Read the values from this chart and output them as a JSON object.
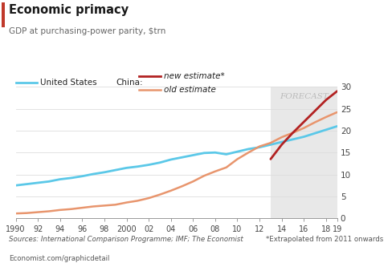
{
  "title": "Economic primacy",
  "subtitle": "GDP at purchasing-power parity, $trn",
  "source_left": "Sources: International Comparison Programme; IMF; The Economist",
  "source_right": "*Extrapolated from 2011 onwards",
  "footer": "Economist.com/graphicdetail",
  "forecast_start": 2013,
  "forecast_end": 2019,
  "ylim": [
    0,
    30
  ],
  "yticks": [
    0,
    5,
    10,
    15,
    20,
    25,
    30
  ],
  "xtick_labels": [
    "1990",
    "92",
    "94",
    "96",
    "98",
    "2000",
    "02",
    "04",
    "06",
    "08",
    "10",
    "12",
    "14",
    "16",
    "18",
    "19"
  ],
  "xtick_values": [
    1990,
    1992,
    1994,
    1996,
    1998,
    2000,
    2002,
    2004,
    2006,
    2008,
    2010,
    2012,
    2014,
    2016,
    2018,
    2019
  ],
  "us_color": "#5bc8e8",
  "china_new_color": "#b22222",
  "china_old_color": "#e8956d",
  "title_color": "#1a1a1a",
  "subtitle_color": "#666666",
  "forecast_bg": "#e8e8e8",
  "forecast_label_color": "#bbbbbb",
  "us_data": {
    "years": [
      1990,
      1991,
      1992,
      1993,
      1994,
      1995,
      1996,
      1997,
      1998,
      1999,
      2000,
      2001,
      2002,
      2003,
      2004,
      2005,
      2006,
      2007,
      2008,
      2009,
      2010,
      2011,
      2012,
      2013,
      2014,
      2015,
      2016,
      2017,
      2018,
      2019
    ],
    "values": [
      7.5,
      7.8,
      8.1,
      8.4,
      8.9,
      9.2,
      9.6,
      10.1,
      10.5,
      11.0,
      11.5,
      11.8,
      12.2,
      12.7,
      13.4,
      13.9,
      14.4,
      14.9,
      15.0,
      14.6,
      15.2,
      15.8,
      16.2,
      16.8,
      17.4,
      18.0,
      18.6,
      19.4,
      20.2,
      21.0
    ]
  },
  "china_old_data": {
    "years": [
      1990,
      1991,
      1992,
      1993,
      1994,
      1995,
      1996,
      1997,
      1998,
      1999,
      2000,
      2001,
      2002,
      2003,
      2004,
      2005,
      2006,
      2007,
      2008,
      2009,
      2010,
      2011,
      2012,
      2013,
      2014,
      2015,
      2016,
      2017,
      2018,
      2019
    ],
    "values": [
      1.1,
      1.2,
      1.4,
      1.6,
      1.9,
      2.1,
      2.4,
      2.7,
      2.9,
      3.1,
      3.6,
      4.0,
      4.6,
      5.4,
      6.3,
      7.3,
      8.4,
      9.7,
      10.7,
      11.6,
      13.5,
      15.0,
      16.4,
      17.2,
      18.5,
      19.5,
      20.6,
      21.9,
      23.1,
      24.2
    ],
    "note": "China old estimate"
  },
  "china_new_data": {
    "years": [
      2013,
      2014,
      2015,
      2016,
      2017,
      2018,
      2019
    ],
    "values": [
      13.5,
      16.8,
      19.5,
      22.0,
      24.5,
      27.0,
      29.0
    ],
    "note": "China new estimate"
  }
}
